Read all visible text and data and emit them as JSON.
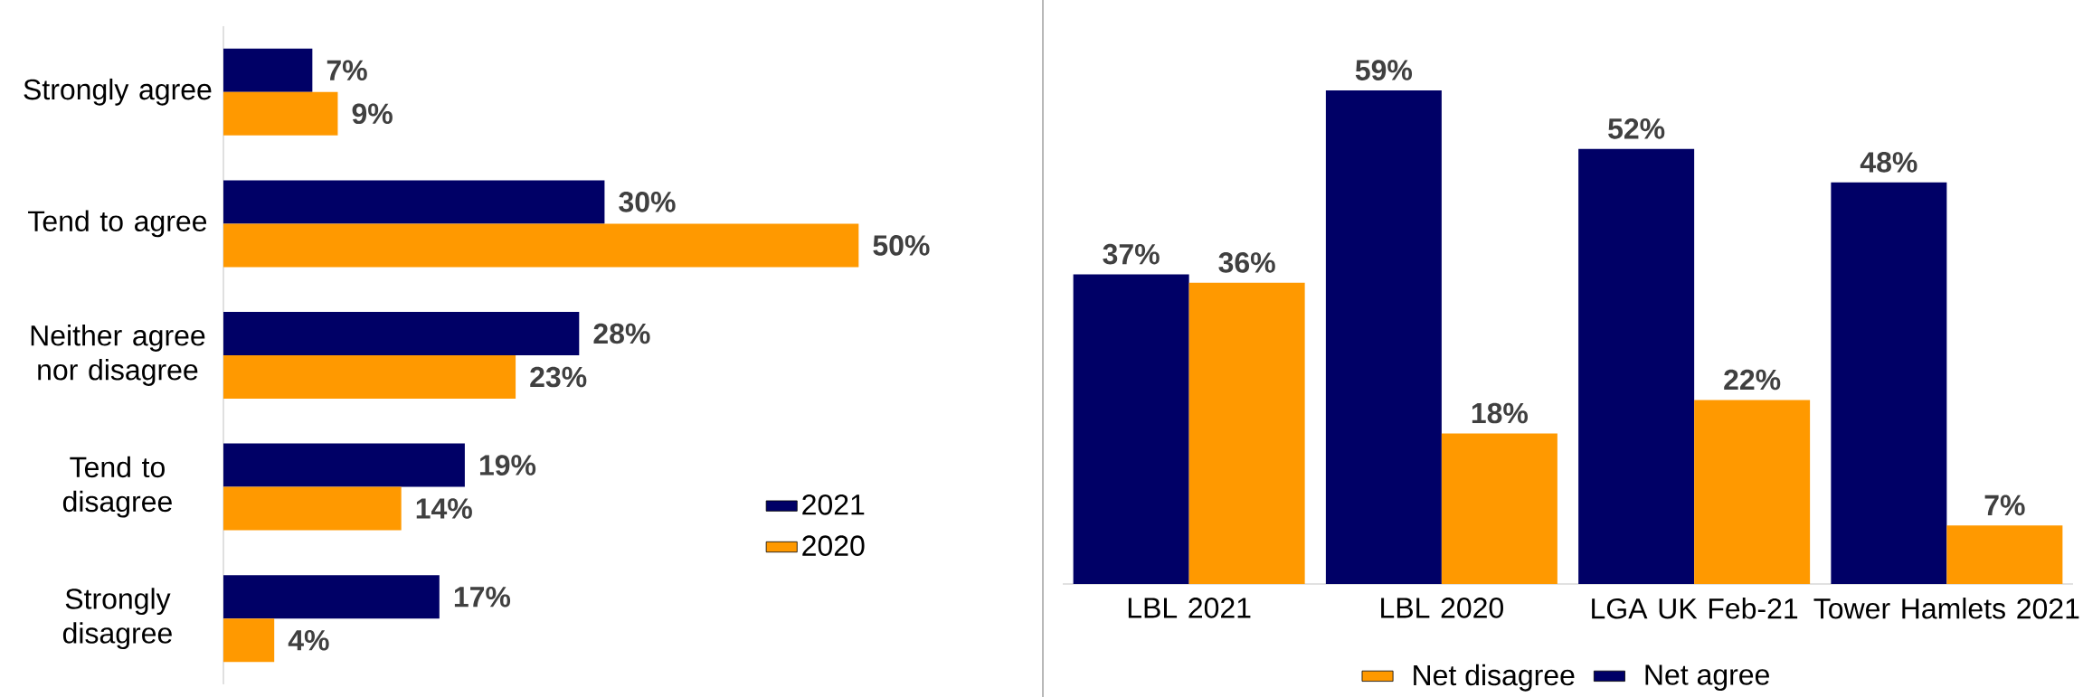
{
  "chart_data": [
    {
      "type": "bar",
      "orientation": "horizontal",
      "categories": [
        "Strongly agree",
        "Tend to agree",
        "Neither agree nor disagree",
        "Tend to disagree",
        "Strongly disagree"
      ],
      "series": [
        {
          "name": "2021",
          "color": "#000066",
          "values": [
            7,
            30,
            28,
            19,
            17
          ],
          "value_labels": [
            "7%",
            "30%",
            "28%",
            "19%",
            "17%"
          ]
        },
        {
          "name": "2020",
          "color": "#ff9900",
          "values": [
            9,
            50,
            23,
            14,
            4
          ],
          "value_labels": [
            "9%",
            "50%",
            "23%",
            "14%",
            "4%"
          ]
        }
      ],
      "legend": "bottom right"
    },
    {
      "type": "bar",
      "categories": [
        "LBL 2021",
        "LBL 2020",
        "LGA UK Feb-21",
        "Tower Hamlets 2021"
      ],
      "series": [
        {
          "name": "Net agree",
          "color": "#000066",
          "values": [
            37,
            59,
            52,
            48
          ],
          "value_labels": [
            "37%",
            "59%",
            "52%",
            "48%"
          ]
        },
        {
          "name": "Net disagree",
          "color": "#ff9900",
          "values": [
            36,
            18,
            22,
            7
          ],
          "value_labels": [
            "36%",
            "18%",
            "22%",
            "7%"
          ]
        }
      ],
      "legend": "bottom"
    }
  ]
}
